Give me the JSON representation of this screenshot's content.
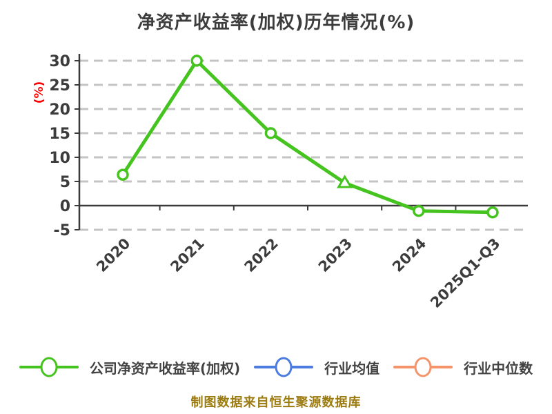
{
  "chart_data": {
    "type": "line",
    "title": "净资产收益率(加权)历年情况(%)",
    "ylabel": "(%)",
    "xlabel": "",
    "categories": [
      "2020",
      "2021",
      "2022",
      "2023",
      "2024",
      "2025Q1-Q3"
    ],
    "series": [
      {
        "name": "公司净资产收益率(加权)",
        "color": "#45c31f",
        "values": [
          6.4,
          30.0,
          15.0,
          4.7,
          -1.1,
          -1.4
        ],
        "markers": [
          "circle",
          "circle",
          "circle",
          "triangle",
          "circle",
          "circle"
        ]
      }
    ],
    "legend": [
      {
        "label": "公司净资产收益率(加权)",
        "color": "#45c31f"
      },
      {
        "label": "行业均值",
        "color": "#4d7ce0"
      },
      {
        "label": "行业中位数",
        "color": "#f5936b"
      }
    ],
    "yticks": [
      30,
      25,
      20,
      15,
      10,
      5,
      0,
      -5
    ],
    "ylim": [
      -5,
      30
    ],
    "grid": "horizontal-dashed",
    "legend_position": "bottom",
    "x_label_rotation_deg": 45
  },
  "footer": "制图数据来自恒生聚源数据库",
  "colors": {
    "title": "#3d3d3d",
    "tick_text": "#3c3c3c",
    "axis": "#3a3a3a",
    "grid": "#c4c4c4",
    "ylabel": "#ff0000",
    "marker_fill": "#ffffff",
    "footer": "#9c7b10",
    "background": "#ffffff"
  }
}
